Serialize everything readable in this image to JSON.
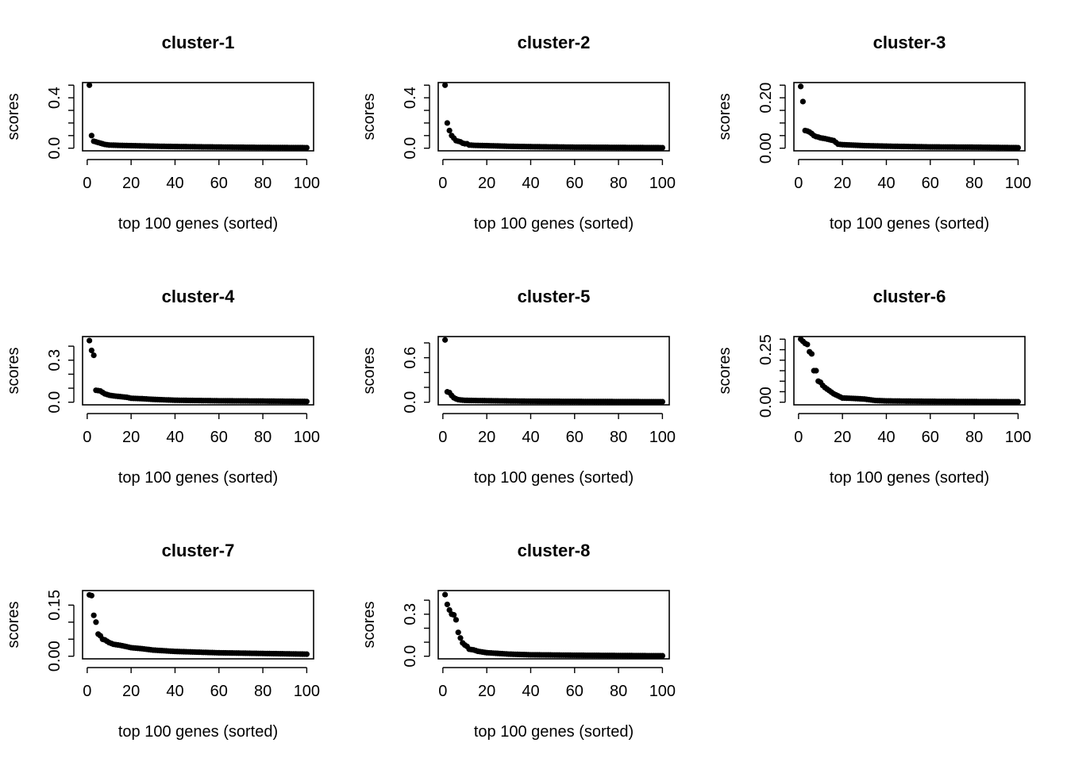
{
  "chart_data": [
    {
      "type": "scatter",
      "title": "cluster-1",
      "xlabel": "top 100 genes (sorted)",
      "ylabel": "scores",
      "xlim": [
        1,
        100
      ],
      "ylim": [
        0,
        0.5
      ],
      "xticks": [
        0,
        20,
        40,
        60,
        80,
        100
      ],
      "xtick_labels": [
        "0",
        "20",
        "40",
        "60",
        "80",
        "100"
      ],
      "yticks": [
        0,
        0.1,
        0.2,
        0.3,
        0.4,
        0.5
      ],
      "ytick_labels": [
        "0.0",
        "",
        "",
        "",
        "0.4",
        ""
      ],
      "knots": [
        [
          1,
          0.5
        ],
        [
          2,
          0.1
        ],
        [
          3,
          0.055
        ],
        [
          4,
          0.05
        ],
        [
          5,
          0.045
        ],
        [
          6,
          0.04
        ],
        [
          7,
          0.035
        ],
        [
          8,
          0.03
        ],
        [
          10,
          0.025
        ],
        [
          15,
          0.022
        ],
        [
          20,
          0.02
        ],
        [
          30,
          0.016
        ],
        [
          40,
          0.013
        ],
        [
          60,
          0.009
        ],
        [
          80,
          0.006
        ],
        [
          100,
          0.004
        ]
      ]
    },
    {
      "type": "scatter",
      "title": "cluster-2",
      "xlabel": "top 100 genes (sorted)",
      "ylabel": "scores",
      "xlim": [
        1,
        100
      ],
      "ylim": [
        0,
        0.5
      ],
      "xticks": [
        0,
        20,
        40,
        60,
        80,
        100
      ],
      "xtick_labels": [
        "0",
        "20",
        "40",
        "60",
        "80",
        "100"
      ],
      "yticks": [
        0,
        0.1,
        0.2,
        0.3,
        0.4,
        0.5
      ],
      "ytick_labels": [
        "0.0",
        "",
        "",
        "",
        "0.4",
        ""
      ],
      "knots": [
        [
          1,
          0.5
        ],
        [
          2,
          0.2
        ],
        [
          3,
          0.14
        ],
        [
          4,
          0.1
        ],
        [
          5,
          0.08
        ],
        [
          6,
          0.06
        ],
        [
          7,
          0.055
        ],
        [
          8,
          0.05
        ],
        [
          9,
          0.04
        ],
        [
          10,
          0.035
        ],
        [
          11,
          0.035
        ],
        [
          12,
          0.025
        ],
        [
          15,
          0.022
        ],
        [
          20,
          0.02
        ],
        [
          30,
          0.015
        ],
        [
          40,
          0.012
        ],
        [
          60,
          0.008
        ],
        [
          80,
          0.006
        ],
        [
          100,
          0.004
        ]
      ]
    },
    {
      "type": "scatter",
      "title": "cluster-3",
      "xlabel": "top 100 genes (sorted)",
      "ylabel": "scores",
      "xlim": [
        1,
        100
      ],
      "ylim": [
        0,
        0.25
      ],
      "xticks": [
        0,
        20,
        40,
        60,
        80,
        100
      ],
      "xtick_labels": [
        "0",
        "20",
        "40",
        "60",
        "80",
        "100"
      ],
      "yticks": [
        0,
        0.05,
        0.1,
        0.15,
        0.2,
        0.25
      ],
      "ytick_labels": [
        "0.00",
        "",
        "",
        "",
        "0.20",
        ""
      ],
      "knots": [
        [
          1,
          0.245
        ],
        [
          2,
          0.185
        ],
        [
          3,
          0.07
        ],
        [
          4,
          0.068
        ],
        [
          5,
          0.064
        ],
        [
          6,
          0.058
        ],
        [
          7,
          0.05
        ],
        [
          8,
          0.046
        ],
        [
          9,
          0.044
        ],
        [
          10,
          0.041
        ],
        [
          12,
          0.038
        ],
        [
          14,
          0.034
        ],
        [
          16,
          0.03
        ],
        [
          18,
          0.016
        ],
        [
          20,
          0.014
        ],
        [
          25,
          0.012
        ],
        [
          30,
          0.01
        ],
        [
          40,
          0.008
        ],
        [
          60,
          0.005
        ],
        [
          80,
          0.004
        ],
        [
          100,
          0.002
        ]
      ]
    },
    {
      "type": "scatter",
      "title": "cluster-4",
      "xlabel": "top 100 genes (sorted)",
      "ylabel": "scores",
      "xlim": [
        1,
        100
      ],
      "ylim": [
        0,
        0.45
      ],
      "xticks": [
        0,
        20,
        40,
        60,
        80,
        100
      ],
      "xtick_labels": [
        "0",
        "20",
        "40",
        "60",
        "80",
        "100"
      ],
      "yticks": [
        0,
        0.1,
        0.2,
        0.3,
        0.4
      ],
      "ytick_labels": [
        "0.0",
        "",
        "",
        "0.3",
        ""
      ],
      "knots": [
        [
          1,
          0.44
        ],
        [
          2,
          0.37
        ],
        [
          3,
          0.335
        ],
        [
          4,
          0.085
        ],
        [
          5,
          0.083
        ],
        [
          6,
          0.08
        ],
        [
          7,
          0.07
        ],
        [
          8,
          0.06
        ],
        [
          10,
          0.05
        ],
        [
          12,
          0.045
        ],
        [
          15,
          0.04
        ],
        [
          18,
          0.035
        ],
        [
          20,
          0.028
        ],
        [
          25,
          0.025
        ],
        [
          30,
          0.02
        ],
        [
          40,
          0.014
        ],
        [
          60,
          0.01
        ],
        [
          80,
          0.008
        ],
        [
          100,
          0.005
        ]
      ]
    },
    {
      "type": "scatter",
      "title": "cluster-5",
      "xlabel": "top 100 genes (sorted)",
      "ylabel": "scores",
      "xlim": [
        1,
        100
      ],
      "ylim": [
        0,
        0.85
      ],
      "xticks": [
        0,
        20,
        40,
        60,
        80,
        100
      ],
      "xtick_labels": [
        "0",
        "20",
        "40",
        "60",
        "80",
        "100"
      ],
      "yticks": [
        0,
        0.2,
        0.4,
        0.6,
        0.8
      ],
      "ytick_labels": [
        "0.0",
        "",
        "",
        "0.6",
        ""
      ],
      "knots": [
        [
          1,
          0.84
        ],
        [
          2,
          0.14
        ],
        [
          3,
          0.13
        ],
        [
          4,
          0.09
        ],
        [
          5,
          0.06
        ],
        [
          6,
          0.045
        ],
        [
          7,
          0.035
        ],
        [
          8,
          0.03
        ],
        [
          10,
          0.025
        ],
        [
          15,
          0.022
        ],
        [
          20,
          0.02
        ],
        [
          30,
          0.016
        ],
        [
          40,
          0.013
        ],
        [
          60,
          0.01
        ],
        [
          80,
          0.008
        ],
        [
          100,
          0.006
        ]
      ]
    },
    {
      "type": "scatter",
      "title": "cluster-6",
      "xlabel": "top 100 genes (sorted)",
      "ylabel": "scores",
      "xlim": [
        1,
        100
      ],
      "ylim": [
        0,
        0.3
      ],
      "xticks": [
        0,
        20,
        40,
        60,
        80,
        100
      ],
      "xtick_labels": [
        "0",
        "20",
        "40",
        "60",
        "80",
        "100"
      ],
      "yticks": [
        0,
        0.05,
        0.1,
        0.15,
        0.2,
        0.25,
        0.3
      ],
      "ytick_labels": [
        "0.00",
        "",
        "",
        "",
        "",
        "0.25",
        ""
      ],
      "knots": [
        [
          1,
          0.3
        ],
        [
          2,
          0.29
        ],
        [
          3,
          0.28
        ],
        [
          4,
          0.275
        ],
        [
          5,
          0.24
        ],
        [
          6,
          0.23
        ],
        [
          7,
          0.15
        ],
        [
          8,
          0.15
        ],
        [
          9,
          0.1
        ],
        [
          10,
          0.095
        ],
        [
          11,
          0.08
        ],
        [
          12,
          0.07
        ],
        [
          14,
          0.055
        ],
        [
          16,
          0.04
        ],
        [
          18,
          0.03
        ],
        [
          20,
          0.02
        ],
        [
          25,
          0.018
        ],
        [
          30,
          0.015
        ],
        [
          35,
          0.008
        ],
        [
          40,
          0.006
        ],
        [
          60,
          0.004
        ],
        [
          80,
          0.003
        ],
        [
          100,
          0.002
        ]
      ]
    },
    {
      "type": "scatter",
      "title": "cluster-7",
      "xlabel": "top 100 genes (sorted)",
      "ylabel": "scores",
      "xlim": [
        1,
        100
      ],
      "ylim": [
        0,
        0.185
      ],
      "xticks": [
        0,
        20,
        40,
        60,
        80,
        100
      ],
      "xtick_labels": [
        "0",
        "20",
        "40",
        "60",
        "80",
        "100"
      ],
      "yticks": [
        0,
        0.05,
        0.1,
        0.15
      ],
      "ytick_labels": [
        "0.00",
        "",
        "",
        "0.15"
      ],
      "knots": [
        [
          1,
          0.18
        ],
        [
          2,
          0.178
        ],
        [
          3,
          0.12
        ],
        [
          4,
          0.1
        ],
        [
          5,
          0.065
        ],
        [
          6,
          0.06
        ],
        [
          7,
          0.05
        ],
        [
          8,
          0.048
        ],
        [
          10,
          0.04
        ],
        [
          12,
          0.035
        ],
        [
          15,
          0.032
        ],
        [
          18,
          0.028
        ],
        [
          20,
          0.025
        ],
        [
          25,
          0.022
        ],
        [
          30,
          0.018
        ],
        [
          40,
          0.014
        ],
        [
          50,
          0.012
        ],
        [
          60,
          0.01
        ],
        [
          80,
          0.008
        ],
        [
          100,
          0.006
        ]
      ]
    },
    {
      "type": "scatter",
      "title": "cluster-8",
      "xlabel": "top 100 genes (sorted)",
      "ylabel": "scores",
      "xlim": [
        1,
        100
      ],
      "ylim": [
        0,
        0.45
      ],
      "xticks": [
        0,
        20,
        40,
        60,
        80,
        100
      ],
      "xtick_labels": [
        "0",
        "20",
        "40",
        "60",
        "80",
        "100"
      ],
      "yticks": [
        0,
        0.1,
        0.2,
        0.3,
        0.4
      ],
      "ytick_labels": [
        "0.0",
        "",
        "",
        "0.3",
        ""
      ],
      "knots": [
        [
          1,
          0.44
        ],
        [
          2,
          0.37
        ],
        [
          3,
          0.33
        ],
        [
          4,
          0.3
        ],
        [
          5,
          0.295
        ],
        [
          6,
          0.26
        ],
        [
          7,
          0.17
        ],
        [
          8,
          0.13
        ],
        [
          9,
          0.095
        ],
        [
          10,
          0.08
        ],
        [
          11,
          0.07
        ],
        [
          12,
          0.05
        ],
        [
          14,
          0.045
        ],
        [
          16,
          0.035
        ],
        [
          18,
          0.03
        ],
        [
          20,
          0.025
        ],
        [
          25,
          0.02
        ],
        [
          30,
          0.015
        ],
        [
          40,
          0.01
        ],
        [
          60,
          0.007
        ],
        [
          80,
          0.005
        ],
        [
          100,
          0.003
        ]
      ]
    }
  ],
  "colors": {
    "points": "#000000",
    "axes": "#000000",
    "background": "#ffffff"
  }
}
